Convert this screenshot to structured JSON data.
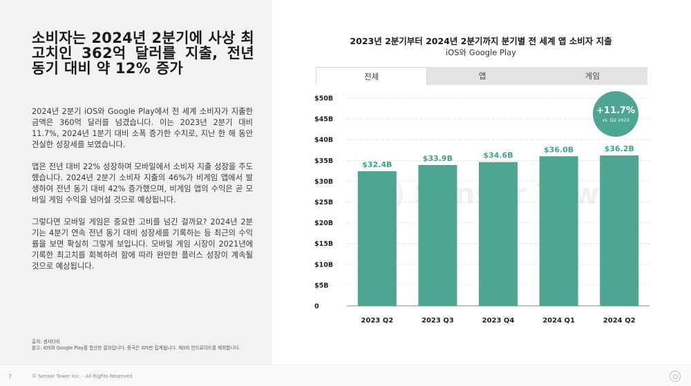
{
  "left": {
    "headline": "소비자는 2024년 2분기에 사상 최고치인 362억 달러를 지출, 전년 동기 대비 약 12% 증가",
    "paragraphs": [
      "2024년 2분기 iOS와 Google Play에서 전 세계 소비자가 지출한 금액은 360억 달러를 넘겼습니다. 이는 2023년 2분기 대비 11.7%, 2024년 1분기 대비 소폭 증가한 수치로, 지난 한 해 동안 견실한 성장세를 보였습니다.",
      "앱은 전년 대비 22% 성장하며 모바일에서 소비자 지출 성장을 주도했습니다. 2024년 2분기 소비자 지출의 46%가 비게임 앱에서 발생하여 전년 동기 대비 42% 증가했으며, 비게임 앱의 수익은 곧 모바일 게임 수익을 넘어설 것으로 예상됩니다.",
      "그렇다면 모바일 게임은 중요한 고비를 넘긴 걸까요? 2024년 2분기는 4분기 연속 전년 동기 대비 성장세를 기록하는 등 최근의 수익률을 보면 확실히 그렇게 보입니다. 모바일 게임 시장이 2021년에 기록한 최고치를 회복하려 함에 따라 완만한 플러스 성장이 계속될 것으로 예상됩니다."
    ],
    "source_line1": "출처: 센서타워",
    "source_line2": "참고: iOS와 Google Play를 합산한 결과입니다. 중국은 iOS만 집계됩니다. 제3자 안드로이드를 제외합니다."
  },
  "footer": {
    "page_number": "7",
    "copyright": "© Sensor Tower Inc. - All Rights Reserved"
  },
  "chart_header": {
    "title": "2023년 2분기부터 2024년 2분기까지 분기별 전 세계 앱 소비자 지출",
    "subtitle": "iOS와 Google Play"
  },
  "tabs": [
    {
      "label": "전체",
      "active": true
    },
    {
      "label": "앱",
      "active": false
    },
    {
      "label": "게임",
      "active": false
    }
  ],
  "badge": {
    "value": "+11.7%",
    "caption": "vs. Q2 2023"
  },
  "watermark": "Sensor Tower",
  "colors": {
    "bar": "#4ea592",
    "bar_label": "#3aa48f",
    "left_panel": "#f2f2f2"
  },
  "chart_data": {
    "type": "bar",
    "title": "2023년 2분기부터 2024년 2분기까지 분기별 전 세계 앱 소비자 지출",
    "subtitle": "iOS와 Google Play",
    "categories": [
      "2023 Q2",
      "2023 Q3",
      "2023 Q4",
      "2024 Q1",
      "2024 Q2"
    ],
    "values": [
      32.4,
      33.9,
      34.6,
      36.0,
      36.2
    ],
    "data_labels": [
      "$32.4B",
      "$33.9B",
      "$34.6B",
      "$36.0B",
      "$36.2B"
    ],
    "y_ticks": [
      0,
      5,
      10,
      15,
      20,
      25,
      30,
      35,
      40,
      45,
      50
    ],
    "y_tick_labels": [
      "0",
      "$5B",
      "$10B",
      "$15B",
      "$20B",
      "$25B",
      "$30B",
      "$35B",
      "$40B",
      "$45B",
      "$50B"
    ],
    "ylim": [
      0,
      50
    ],
    "xlabel": "",
    "ylabel": "",
    "grid": true,
    "legend": "none"
  }
}
